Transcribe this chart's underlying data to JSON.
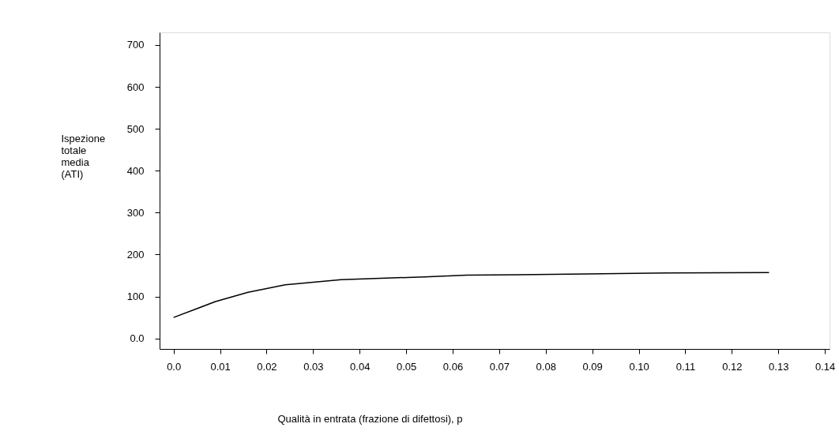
{
  "chart_data": {
    "type": "line",
    "xlabel": "Qualità in entrata (frazione di difettosi), p",
    "ylabel": "Ispezione totale media (ATI)",
    "x": [
      0.0,
      0.009,
      0.016,
      0.024,
      0.036,
      0.054,
      0.063,
      0.074,
      0.106,
      0.128
    ],
    "series": [
      {
        "color": "#000000",
        "values": [
          50,
          88,
          110,
          128,
          140,
          147,
          151,
          152,
          156,
          157
        ]
      }
    ],
    "xlim": [
      -0.003,
      0.141
    ],
    "ylim": [
      -25,
      730
    ],
    "xticks": [
      {
        "value": 0,
        "label": "0.0"
      },
      0.01,
      0.02,
      0.03,
      0.04,
      0.05,
      0.06,
      0.07,
      0.08,
      0.09,
      {
        "value": 0.1,
        "label": "0.10"
      },
      0.11,
      0.12,
      0.13,
      0.14
    ],
    "yticks": [
      {
        "value": 0,
        "label": "0.0"
      },
      100,
      200,
      300,
      400,
      500,
      600,
      700
    ],
    "grid": false,
    "marker": "none",
    "line_style": "solid"
  }
}
